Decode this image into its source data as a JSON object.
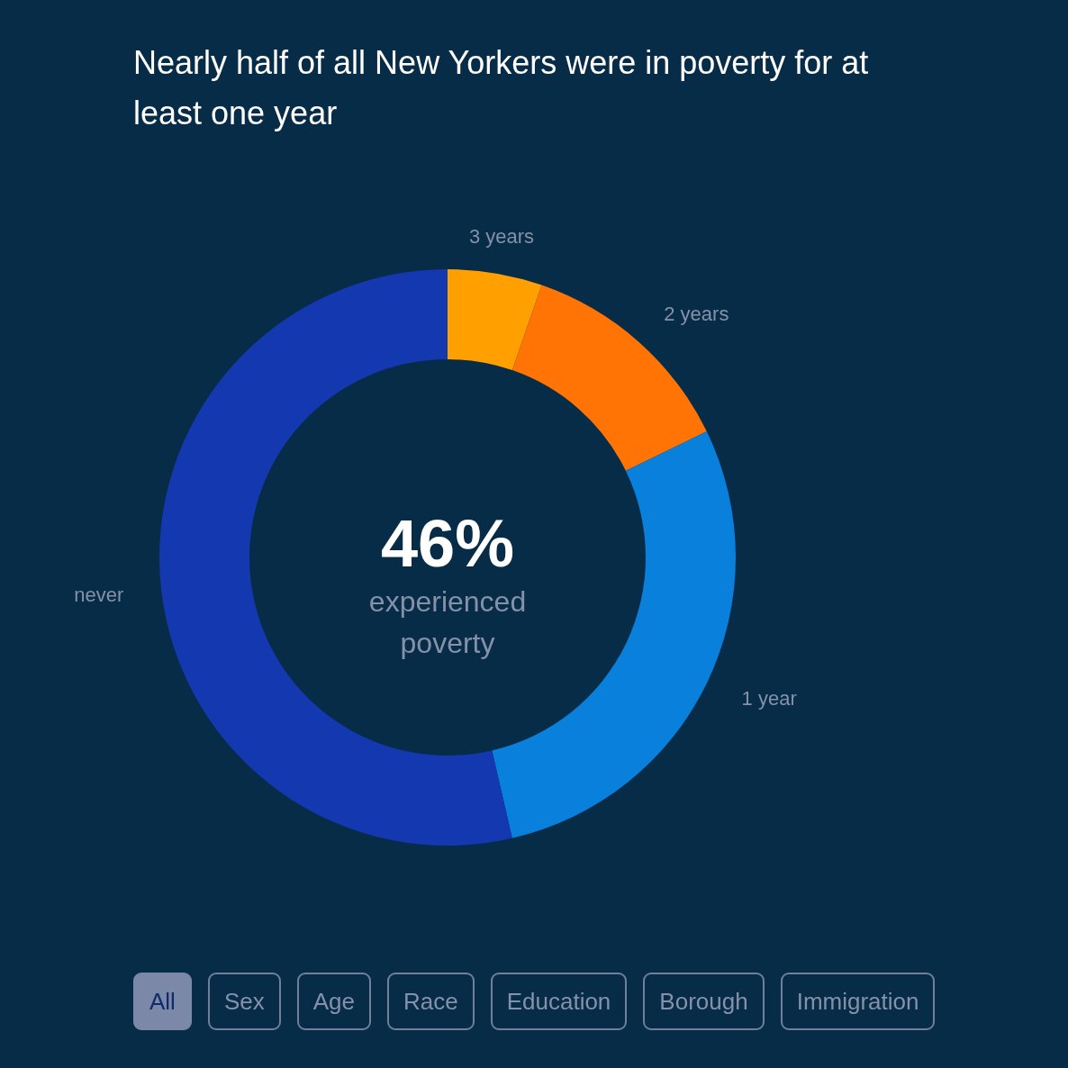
{
  "chart_data": {
    "type": "donut",
    "title": "Nearly half of all New Yorkers were in poverty for at least one year",
    "categories": [
      "3 years",
      "2 years",
      "1 year",
      "never"
    ],
    "values": [
      5.3,
      12.5,
      28.6,
      53.6
    ],
    "colors": [
      "#ffa000",
      "#ff7404",
      "#0880dc",
      "#1438b0"
    ],
    "annotations": [
      "46%",
      "experienced poverty",
      "All",
      "Sex",
      "Age",
      "Race",
      "Education",
      "Borough",
      "Immigration"
    ]
  }
}
